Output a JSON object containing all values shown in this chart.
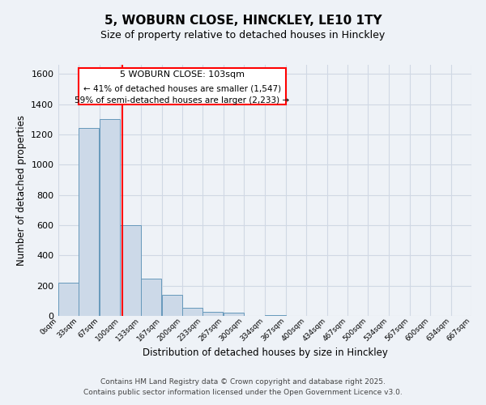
{
  "title": "5, WOBURN CLOSE, HINCKLEY, LE10 1TY",
  "subtitle": "Size of property relative to detached houses in Hinckley",
  "xlabel": "Distribution of detached houses by size in Hinckley",
  "ylabel": "Number of detached properties",
  "bin_edges": [
    0,
    33,
    67,
    100,
    133,
    167,
    200,
    233,
    267,
    300,
    334,
    367,
    400,
    434,
    467,
    500,
    534,
    567,
    600,
    634,
    667
  ],
  "bin_labels": [
    "0sqm",
    "33sqm",
    "67sqm",
    "100sqm",
    "133sqm",
    "167sqm",
    "200sqm",
    "233sqm",
    "267sqm",
    "300sqm",
    "334sqm",
    "367sqm",
    "400sqm",
    "434sqm",
    "467sqm",
    "500sqm",
    "534sqm",
    "567sqm",
    "600sqm",
    "634sqm",
    "667sqm"
  ],
  "bar_heights": [
    220,
    1240,
    1300,
    600,
    245,
    140,
    55,
    25,
    20,
    0,
    5,
    0,
    0,
    0,
    0,
    0,
    0,
    0,
    0,
    0
  ],
  "bar_color": "#ccd9e8",
  "bar_edge_color": "#6699bb",
  "red_line_x": 103,
  "ylim": [
    0,
    1660
  ],
  "yticks": [
    0,
    200,
    400,
    600,
    800,
    1000,
    1200,
    1400,
    1600
  ],
  "ann_title": "5 WOBURN CLOSE: 103sqm",
  "ann_line2": "← 41% of detached houses are smaller (1,547)",
  "ann_line3": "59% of semi-detached houses are larger (2,233) →",
  "bg_color": "#eef2f7",
  "grid_color": "#d0d8e4",
  "footer_line1": "Contains HM Land Registry data © Crown copyright and database right 2025.",
  "footer_line2": "Contains public sector information licensed under the Open Government Licence v3.0."
}
